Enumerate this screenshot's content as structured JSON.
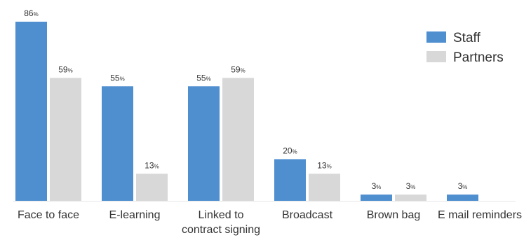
{
  "chart_data": {
    "type": "bar",
    "categories": [
      [
        "Face to face"
      ],
      [
        "E-learning"
      ],
      [
        "Linked to",
        "contract signing"
      ],
      [
        "Broadcast"
      ],
      [
        "Brown bag"
      ],
      [
        "E mail reminders"
      ]
    ],
    "series": [
      {
        "name": "Staff",
        "color": "#4F8FD0",
        "values": [
          86,
          55,
          55,
          20,
          3,
          3
        ],
        "labels": [
          "86",
          "55",
          "55",
          "20",
          "3",
          "3"
        ]
      },
      {
        "name": "Partners",
        "color": "#D9D8D9",
        "values": [
          59,
          13,
          59,
          13,
          3,
          null
        ],
        "labels": [
          "59",
          "13",
          "59",
          "13",
          "3",
          ""
        ]
      }
    ],
    "value_suffix": "%",
    "ylim": [
      0,
      86
    ],
    "grid": false,
    "legend": "top-right",
    "title": "",
    "xlabel": "",
    "ylabel": ""
  }
}
